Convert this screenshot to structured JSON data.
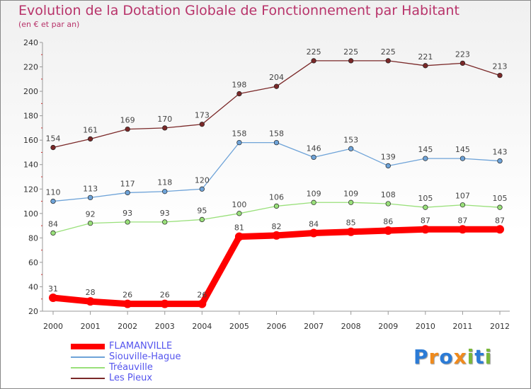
{
  "header": {
    "title": "Evolution de la Dotation Globale de Fonctionnement par Habitant",
    "subtitle": "(en € et par an)"
  },
  "colors": {
    "title": "#b8336a",
    "legend_text": "#5555ee",
    "axis": "#999999"
  },
  "chart_data": {
    "type": "line",
    "title": "Evolution de la Dotation Globale de Fonctionnement par Habitant",
    "subtitle": "(en € et par an)",
    "xlabel": "",
    "ylabel": "",
    "x": [
      "2000",
      "2001",
      "2002",
      "2003",
      "2004",
      "2005",
      "2006",
      "2007",
      "2008",
      "2009",
      "2010",
      "2011",
      "2012"
    ],
    "ylim": [
      20,
      240
    ],
    "yticks": [
      20,
      40,
      60,
      80,
      100,
      120,
      140,
      160,
      180,
      200,
      220,
      240
    ],
    "grid": false,
    "legend_position": "bottom-left",
    "series": [
      {
        "name": "FLAMANVILLE",
        "color": "#ff0000",
        "thick": true,
        "values": [
          31,
          28,
          26,
          26,
          26,
          81,
          82,
          84,
          85,
          86,
          87,
          87,
          87
        ]
      },
      {
        "name": "Siouville-Hague",
        "color": "#6ea3d8",
        "thick": false,
        "values": [
          110,
          113,
          117,
          118,
          120,
          158,
          158,
          146,
          153,
          139,
          145,
          145,
          143
        ]
      },
      {
        "name": "Tréauville",
        "color": "#99e07a",
        "thick": false,
        "values": [
          84,
          92,
          93,
          93,
          95,
          100,
          106,
          109,
          109,
          108,
          105,
          107,
          105
        ]
      },
      {
        "name": "Les Pieux",
        "color": "#7a2828",
        "thick": false,
        "values": [
          154,
          161,
          169,
          170,
          173,
          198,
          204,
          225,
          225,
          225,
          221,
          223,
          213
        ]
      }
    ]
  },
  "legend": {
    "items": [
      {
        "label": "FLAMANVILLE",
        "color": "#ff0000"
      },
      {
        "label": "Siouville-Hague",
        "color": "#6ea3d8"
      },
      {
        "label": "Tréauville",
        "color": "#99e07a"
      },
      {
        "label": "Les Pieux",
        "color": "#7a2828"
      }
    ]
  },
  "logo": {
    "text": "Proxiti",
    "letters": [
      "P",
      "r",
      "o",
      "x",
      "i",
      "t",
      "i"
    ],
    "letter_colors": [
      "#2b7bd6",
      "#f08a1c",
      "#2b7bd6",
      "#f08a1c",
      "#7ab83a",
      "#2b7bd6",
      "#7ab83a"
    ]
  }
}
